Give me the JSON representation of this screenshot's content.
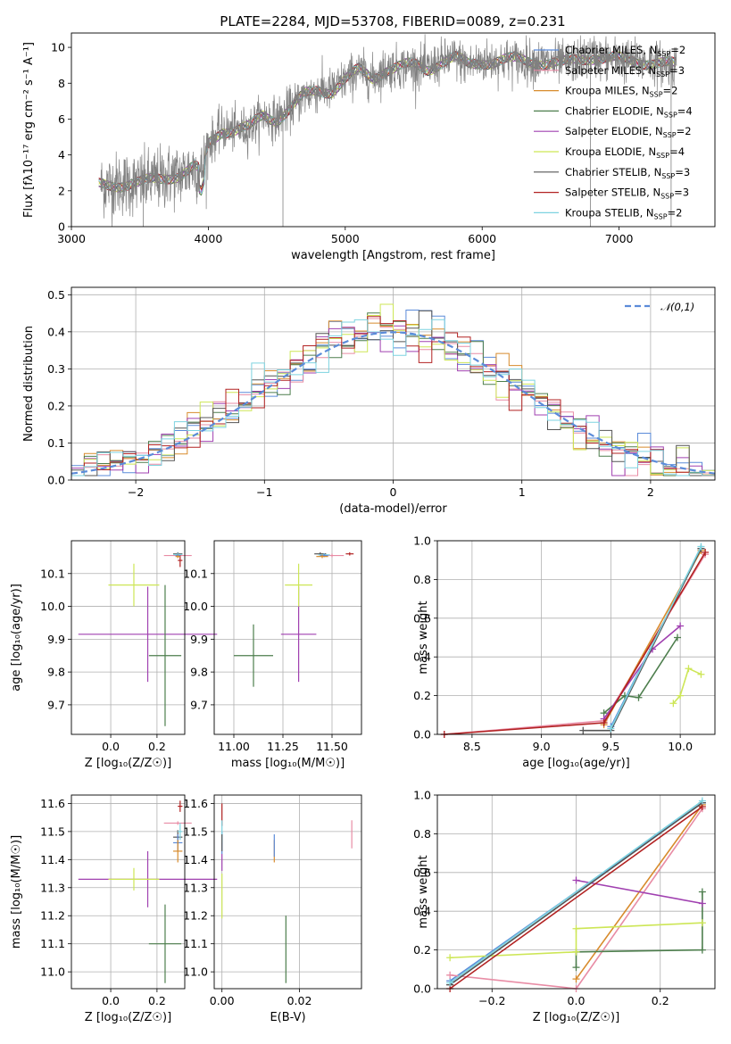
{
  "figure_title": "PLATE=2284, MJD=53708, FIBERID=0089, z=0.231",
  "colors": {
    "Chabrier MILES": "#5b8bd9",
    "Salpeter MILES": "#e88ca5",
    "Kroupa MILES": "#d88b2c",
    "Chabrier ELODIE": "#4d7e4d",
    "Salpeter ELODIE": "#a040b0",
    "Kroupa ELODIE": "#cde656",
    "Chabrier STELIB": "#555555",
    "Salpeter STELIB": "#b22222",
    "Kroupa STELIB": "#7dd3e0"
  },
  "chart_data": [
    {
      "id": "spectrum",
      "type": "line",
      "title": "PLATE=2284, MJD=53708, FIBERID=0089, z=0.231",
      "xlabel": "wavelength [Angstrom, rest frame]",
      "ylabel": "Flux [fλ10⁻¹⁷ erg cm⁻² s⁻¹ A⁻¹]",
      "xlim": [
        3000,
        7700
      ],
      "ylim": [
        0,
        10.8
      ],
      "xticks": [
        "3000",
        "4000",
        "5000",
        "6000",
        "7000"
      ],
      "yticks": [
        "0",
        "2",
        "4",
        "6",
        "8",
        "10"
      ],
      "grid": false,
      "legend_position": "top-right",
      "data_curve": {
        "name": "data",
        "color": "#808080"
      },
      "continuum": {
        "x": [
          3200,
          3400,
          3500,
          3600,
          3700,
          3800,
          3900,
          3950,
          4000,
          4100,
          4200,
          4300,
          4400,
          4500,
          4600,
          4700,
          4800,
          4900,
          5000,
          5100,
          5200,
          5300,
          5400,
          5500,
          5600,
          5700,
          5800,
          5900,
          6000,
          6200,
          6400,
          6600,
          6800,
          7000,
          7200,
          7400
        ],
        "y": [
          2.3,
          2.4,
          2.4,
          2.6,
          2.8,
          2.9,
          3.3,
          3.0,
          4.6,
          5.4,
          5.4,
          5.5,
          6.2,
          6.0,
          6.6,
          7.3,
          7.6,
          7.6,
          8.2,
          8.7,
          8.3,
          8.8,
          8.9,
          9.0,
          8.8,
          9.2,
          9.4,
          9.0,
          9.2,
          9.3,
          9.2,
          9.1,
          9.5,
          9.3,
          9.2,
          9.0
        ]
      },
      "series": [
        {
          "name": "Chabrier MILES",
          "label": "Chabrier MILES, N",
          "nssp": "=2"
        },
        {
          "name": "Salpeter MILES",
          "label": "Salpeter MILES, N",
          "nssp": "=3"
        },
        {
          "name": "Kroupa MILES",
          "label": "Kroupa MILES, N",
          "nssp": "=2"
        },
        {
          "name": "Chabrier ELODIE",
          "label": "Chabrier ELODIE, N",
          "nssp": "=4"
        },
        {
          "name": "Salpeter ELODIE",
          "label": "Salpeter ELODIE, N",
          "nssp": "=2"
        },
        {
          "name": "Kroupa ELODIE",
          "label": "Kroupa ELODIE, N",
          "nssp": "=4"
        },
        {
          "name": "Chabrier STELIB",
          "label": "Chabrier STELIB, N",
          "nssp": "=3"
        },
        {
          "name": "Salpeter STELIB",
          "label": "Salpeter STELIB, N",
          "nssp": "=3"
        },
        {
          "name": "Kroupa STELIB",
          "label": "Kroupa STELIB, N",
          "nssp": "=2"
        }
      ]
    },
    {
      "id": "residuals",
      "type": "line",
      "xlabel": "(data-model)/error",
      "ylabel": "Normed distribution",
      "xlim": [
        -2.5,
        2.5
      ],
      "ylim": [
        0,
        0.52
      ],
      "xticks": [
        "−2",
        "−1",
        "0",
        "1",
        "2"
      ],
      "yticks": [
        "0.0",
        "0.1",
        "0.2",
        "0.3",
        "0.4",
        "0.5"
      ],
      "grid": true,
      "legend_position": "top-right",
      "reference_curve": {
        "name": "𝒩(0,1)",
        "color": "#5b8bd9",
        "style": "dashed"
      },
      "histogram_bin_edges_start": -2.5,
      "histogram_bin_width": 0.1
    },
    {
      "id": "age-vs-Z",
      "type": "scatter",
      "xlabel": "Z [log₁₀(Z/Z☉)]",
      "ylabel": "age  [log₁₀(age/yr)]",
      "xlim": [
        -0.17,
        0.32
      ],
      "ylim": [
        9.61,
        10.2
      ],
      "xticks": [
        "0.0",
        "0.2"
      ],
      "yticks": [
        "9.7",
        "9.8",
        "9.9",
        "10.0",
        "10.1"
      ],
      "grid": true,
      "points": [
        {
          "series": "Salpeter ELODIE",
          "x": 0.16,
          "xerr": 0.3,
          "y": 9.915,
          "yerr": 0.145
        },
        {
          "series": "Chabrier ELODIE",
          "x": 0.235,
          "xerr": 0.07,
          "y": 9.85,
          "yerr": 0.215
        },
        {
          "series": "Kroupa ELODIE",
          "x": 0.1,
          "xerr": 0.11,
          "y": 10.065,
          "yerr": 0.065
        },
        {
          "series": "Salpeter MILES",
          "x": 0.29,
          "xerr": 0.06,
          "y": 10.155,
          "yerr": 0.0
        },
        {
          "series": "Salpeter STELIB",
          "x": 0.3,
          "xerr": 0.01,
          "y": 10.14,
          "yerr": 0.02
        },
        {
          "series": "Chabrier STELIB",
          "x": 0.29,
          "xerr": 0.02,
          "y": 10.16,
          "yerr": 0.005
        },
        {
          "series": "Kroupa STELIB",
          "x": 0.29,
          "xerr": 0.02,
          "y": 10.158,
          "yerr": 0.005
        },
        {
          "series": "Chabrier MILES",
          "x": 0.29,
          "xerr": 0.01,
          "y": 10.155,
          "yerr": 0.005
        },
        {
          "series": "Kroupa MILES",
          "x": 0.29,
          "xerr": 0.01,
          "y": 10.152,
          "yerr": 0.005
        }
      ]
    },
    {
      "id": "age-vs-mass",
      "type": "scatter",
      "xlabel": "mass [log₁₀(M/M☉)]",
      "ylabel": "",
      "xlim": [
        10.9,
        11.65
      ],
      "ylim": [
        9.61,
        10.2
      ],
      "xticks": [
        "11.00",
        "11.25",
        "11.50"
      ],
      "yticks": [
        "9.7",
        "9.8",
        "9.9",
        "10.0",
        "10.1"
      ],
      "grid": true,
      "points": [
        {
          "series": "Chabrier ELODIE",
          "x": 11.1,
          "xerr": 0.1,
          "y": 9.85,
          "yerr": 0.095
        },
        {
          "series": "Salpeter ELODIE",
          "x": 11.33,
          "xerr": 0.09,
          "y": 9.915,
          "yerr": 0.145
        },
        {
          "series": "Kroupa ELODIE",
          "x": 11.33,
          "xerr": 0.07,
          "y": 10.065,
          "yerr": 0.065
        },
        {
          "series": "Salpeter MILES",
          "x": 11.5,
          "xerr": 0.06,
          "y": 10.155,
          "yerr": 0.0
        },
        {
          "series": "Salpeter STELIB",
          "x": 11.59,
          "xerr": 0.02,
          "y": 10.16,
          "yerr": 0.005
        },
        {
          "series": "Chabrier STELIB",
          "x": 11.44,
          "xerr": 0.03,
          "y": 10.16,
          "yerr": 0.005
        },
        {
          "series": "Kroupa STELIB",
          "x": 11.46,
          "xerr": 0.03,
          "y": 10.157,
          "yerr": 0.005
        },
        {
          "series": "Chabrier MILES",
          "x": 11.46,
          "xerr": 0.02,
          "y": 10.155,
          "yerr": 0.005
        },
        {
          "series": "Kroupa MILES",
          "x": 11.45,
          "xerr": 0.03,
          "y": 10.152,
          "yerr": 0.005
        }
      ]
    },
    {
      "id": "weight-vs-age",
      "type": "line",
      "xlabel": "age  [log₁₀(age/yr)]",
      "ylabel": "mass weight",
      "xlim": [
        8.25,
        10.25
      ],
      "ylim": [
        0,
        1.0
      ],
      "xticks": [
        "8.5",
        "9.0",
        "9.5",
        "10.0"
      ],
      "yticks": [
        "0.0",
        "0.2",
        "0.4",
        "0.6",
        "0.8",
        "1.0"
      ],
      "grid": true,
      "series": [
        {
          "name": "Chabrier MILES",
          "x": [
            9.5,
            10.15
          ],
          "y": [
            0.04,
            0.96
          ]
        },
        {
          "name": "Salpeter MILES",
          "x": [
            8.3,
            9.45,
            10.18
          ],
          "y": [
            0.0,
            0.07,
            0.93
          ]
        },
        {
          "name": "Kroupa MILES",
          "x": [
            9.45,
            10.15
          ],
          "y": [
            0.05,
            0.95
          ]
        },
        {
          "name": "Chabrier ELODIE",
          "x": [
            9.45,
            9.6,
            9.7,
            9.98
          ],
          "y": [
            0.11,
            0.2,
            0.19,
            0.5
          ]
        },
        {
          "name": "Salpeter ELODIE",
          "x": [
            9.45,
            9.8,
            10.0
          ],
          "y": [
            0.08,
            0.44,
            0.56
          ]
        },
        {
          "name": "Kroupa ELODIE",
          "x": [
            9.95,
            10.0,
            10.06,
            10.15
          ],
          "y": [
            0.16,
            0.2,
            0.34,
            0.31
          ]
        },
        {
          "name": "Chabrier STELIB",
          "x": [
            9.3,
            9.5,
            10.15
          ],
          "y": [
            0.02,
            0.02,
            0.96
          ]
        },
        {
          "name": "Salpeter STELIB",
          "x": [
            8.3,
            9.45,
            10.18
          ],
          "y": [
            0.0,
            0.06,
            0.94
          ]
        },
        {
          "name": "Kroupa STELIB",
          "x": [
            9.5,
            10.15
          ],
          "y": [
            0.03,
            0.97
          ]
        }
      ]
    },
    {
      "id": "mass-vs-Z",
      "type": "scatter",
      "xlabel": "Z [log₁₀(Z/Z☉)]",
      "ylabel": "mass [log₁₀(M/M☉)]",
      "xlim": [
        -0.17,
        0.32
      ],
      "ylim": [
        10.94,
        11.63
      ],
      "xticks": [
        "0.0",
        "0.2"
      ],
      "yticks": [
        "11.0",
        "11.1",
        "11.2",
        "11.3",
        "11.4",
        "11.5",
        "11.6"
      ],
      "grid": true,
      "points": [
        {
          "series": "Salpeter ELODIE",
          "x": 0.16,
          "xerr": 0.3,
          "y": 11.33,
          "yerr": 0.1
        },
        {
          "series": "Chabrier ELODIE",
          "x": 0.235,
          "xerr": 0.07,
          "y": 11.1,
          "yerr": 0.14
        },
        {
          "series": "Kroupa ELODIE",
          "x": 0.1,
          "xerr": 0.11,
          "y": 11.33,
          "yerr": 0.04
        },
        {
          "series": "Salpeter MILES",
          "x": 0.29,
          "xerr": 0.06,
          "y": 11.53,
          "yerr": 0.0
        },
        {
          "series": "Salpeter STELIB",
          "x": 0.3,
          "xerr": 0.01,
          "y": 11.59,
          "yerr": 0.02
        },
        {
          "series": "Chabrier STELIB",
          "x": 0.29,
          "xerr": 0.02,
          "y": 11.48,
          "yerr": 0.025
        },
        {
          "series": "Kroupa STELIB",
          "x": 0.3,
          "xerr": 0.01,
          "y": 11.5,
          "yerr": 0.03
        },
        {
          "series": "Chabrier MILES",
          "x": 0.29,
          "xerr": 0.02,
          "y": 11.46,
          "yerr": 0.03
        },
        {
          "series": "Kroupa MILES",
          "x": 0.29,
          "xerr": 0.02,
          "y": 11.43,
          "yerr": 0.04
        }
      ]
    },
    {
      "id": "mass-vs-EBV",
      "type": "scatter",
      "xlabel": "E(B-V)",
      "ylabel": "",
      "xlim": [
        -0.002,
        0.036
      ],
      "ylim": [
        10.94,
        11.63
      ],
      "xticks": [
        "0.00",
        "0.02"
      ],
      "yticks": [
        "11.0",
        "11.1",
        "11.2",
        "11.3",
        "11.4",
        "11.5",
        "11.6"
      ],
      "grid": true,
      "points": [
        {
          "series": "Salpeter STELIB",
          "x": 0.0,
          "xerr": 0,
          "y": 11.56,
          "yerr": 0.04
        },
        {
          "series": "Chabrier MILES",
          "x": 0.0,
          "xerr": 0,
          "y": 11.46,
          "yerr": 0.04
        },
        {
          "series": "Kroupa STELIB",
          "x": 0.0,
          "xerr": 0,
          "y": 11.5,
          "yerr": 0.04
        },
        {
          "series": "Salpeter ELODIE",
          "x": 0.0,
          "xerr": 0,
          "y": 11.39,
          "yerr": 0.03
        },
        {
          "series": "Kroupa ELODIE",
          "x": 0.0,
          "xerr": 0,
          "y": 11.27,
          "yerr": 0.08
        },
        {
          "series": "Chabrier STELIB",
          "x": 0.0,
          "xerr": 0,
          "y": 11.46,
          "yerr": 0.03
        },
        {
          "series": "Kroupa MILES",
          "x": 0.0135,
          "xerr": 0,
          "y": 11.43,
          "yerr": 0.04
        },
        {
          "series": "Chabrier MILES",
          "x": 0.0135,
          "xerr": 0,
          "y": 11.45,
          "yerr": 0.04
        },
        {
          "series": "Chabrier ELODIE",
          "x": 0.0165,
          "xerr": 0,
          "y": 11.08,
          "yerr": 0.12
        },
        {
          "series": "Salpeter MILES",
          "x": 0.0335,
          "xerr": 0,
          "y": 11.49,
          "yerr": 0.05
        }
      ]
    },
    {
      "id": "weight-vs-Z",
      "type": "line",
      "xlabel": "Z [log₁₀(Z/Z☉)]",
      "ylabel": "mass weight",
      "xlim": [
        -0.33,
        0.33
      ],
      "ylim": [
        0,
        1.0
      ],
      "xticks": [
        "−0.2",
        "0.0",
        "0.2"
      ],
      "yticks": [
        "0.0",
        "0.2",
        "0.4",
        "0.6",
        "0.8",
        "1.0"
      ],
      "grid": true,
      "series": [
        {
          "name": "Chabrier MILES",
          "x": [
            -0.3,
            0.3
          ],
          "y": [
            0.04,
            0.96
          ]
        },
        {
          "name": "Salpeter MILES",
          "x": [
            -0.3,
            0.0,
            0.3
          ],
          "y": [
            0.07,
            0.0,
            0.93
          ]
        },
        {
          "name": "Kroupa MILES",
          "x": [
            0.0,
            0.3
          ],
          "y": [
            0.05,
            0.95
          ]
        },
        {
          "name": "Chabrier ELODIE",
          "x": [
            0.0,
            0.0,
            0.3,
            0.3
          ],
          "y": [
            0.11,
            0.19,
            0.2,
            0.5
          ]
        },
        {
          "name": "Salpeter ELODIE",
          "x": [
            0.0,
            0.3
          ],
          "y": [
            0.56,
            0.44
          ]
        },
        {
          "name": "Kroupa ELODIE",
          "x": [
            -0.3,
            0.0,
            0.0,
            0.3
          ],
          "y": [
            0.16,
            0.19,
            0.31,
            0.34
          ]
        },
        {
          "name": "Chabrier STELIB",
          "x": [
            -0.3,
            -0.3,
            0.3
          ],
          "y": [
            0.02,
            0.02,
            0.96
          ]
        },
        {
          "name": "Salpeter STELIB",
          "x": [
            -0.3,
            0.3
          ],
          "y": [
            0.0,
            0.94
          ]
        },
        {
          "name": "Kroupa STELIB",
          "x": [
            -0.3,
            0.3
          ],
          "y": [
            0.03,
            0.97
          ]
        }
      ]
    }
  ]
}
